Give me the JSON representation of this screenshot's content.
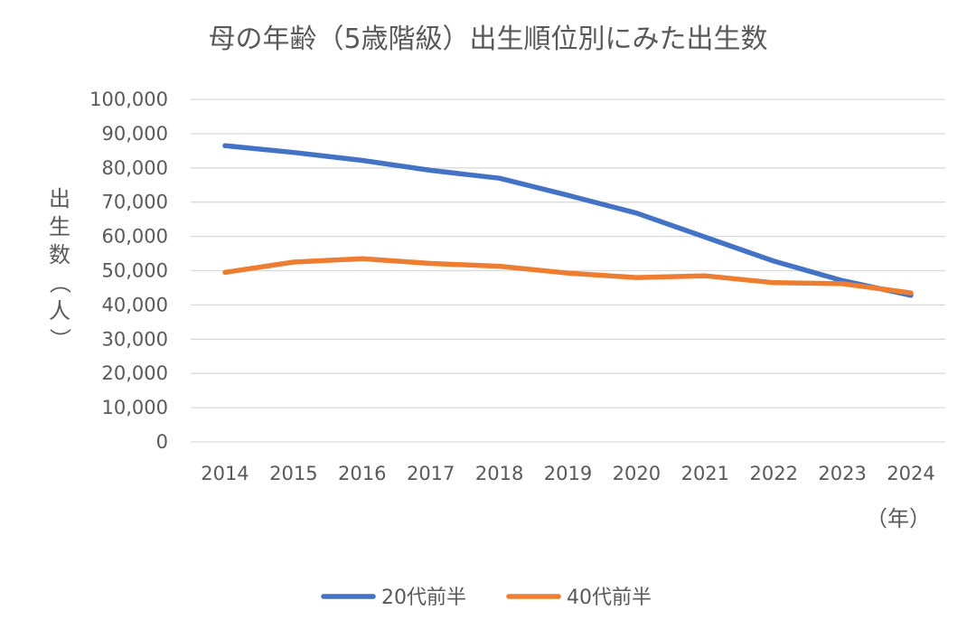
{
  "chart_data": {
    "type": "line",
    "title": "母の年齢（5歳階級）出生順位別にみた出生数",
    "ylabel": "出生数（人）",
    "xlabel": "（年）",
    "ylim": [
      0,
      100000
    ],
    "ytick_step": 10000,
    "grid": true,
    "legend_position": "bottom",
    "x": [
      "2014",
      "2015",
      "2016",
      "2017",
      "2018",
      "2019",
      "2020",
      "2021",
      "2022",
      "2023",
      "2024"
    ],
    "series": [
      {
        "name": "20代前半",
        "color": "#4472C4",
        "values": [
          86500,
          84500,
          82200,
          79300,
          77000,
          72000,
          66800,
          59800,
          52800,
          47100,
          42800
        ]
      },
      {
        "name": "40代前半",
        "color": "#ED7D31",
        "values": [
          49500,
          52500,
          53500,
          52100,
          51300,
          49300,
          48000,
          48500,
          46500,
          46200,
          43500
        ]
      }
    ]
  }
}
